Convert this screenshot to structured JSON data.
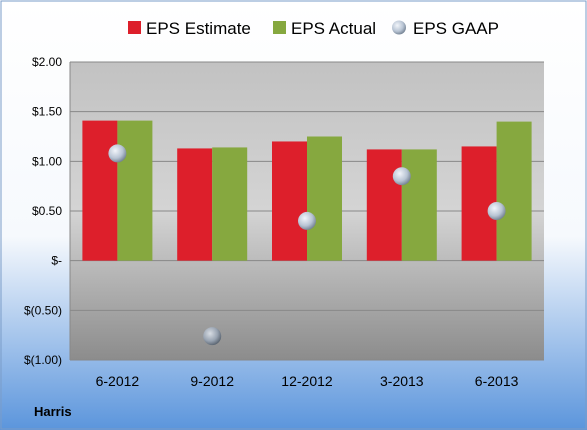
{
  "company": "Harris",
  "colors": {
    "estimate": "#dd1f2b",
    "actual": "#86a83f",
    "gaap": "#b8c4d4",
    "frame_top": "#ffffff",
    "frame_bottom": "#5b95dc",
    "plot_top": "#c2c2c2",
    "plot_bottom": "#8c8c8c"
  },
  "chart_data": {
    "type": "bar",
    "categories": [
      "6-2012",
      "9-2012",
      "12-2012",
      "3-2013",
      "6-2013"
    ],
    "series": [
      {
        "name": "EPS Estimate",
        "kind": "bar",
        "color_key": "estimate",
        "values": [
          1.41,
          1.13,
          1.2,
          1.12,
          1.15
        ]
      },
      {
        "name": "EPS Actual",
        "kind": "bar",
        "color_key": "actual",
        "values": [
          1.41,
          1.14,
          1.25,
          1.12,
          1.4
        ]
      },
      {
        "name": "EPS GAAP",
        "kind": "scatter",
        "color_key": "gaap",
        "values": [
          1.08,
          -0.76,
          0.4,
          0.85,
          0.5
        ]
      }
    ],
    "ylim": [
      -1.0,
      2.0
    ],
    "yticks": [
      2.0,
      1.5,
      1.0,
      0.5,
      0.0,
      -0.5,
      -1.0
    ],
    "ytick_labels": [
      "$2.00",
      "$1.50",
      "$1.00",
      "$0.50",
      "$-",
      "$(0.50)",
      "$(1.00)"
    ],
    "grid": true,
    "legend": "top"
  }
}
